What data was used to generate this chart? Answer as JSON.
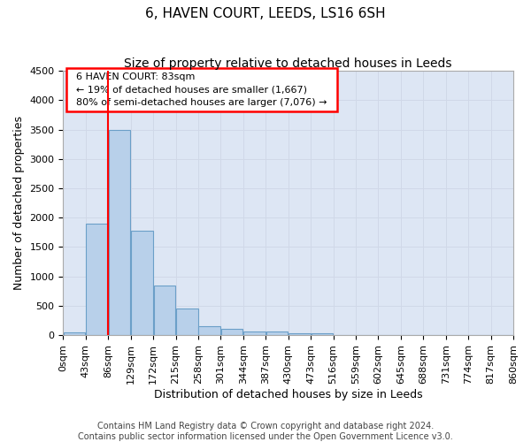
{
  "title": "6, HAVEN COURT, LEEDS, LS16 6SH",
  "subtitle": "Size of property relative to detached houses in Leeds",
  "xlabel": "Distribution of detached houses by size in Leeds",
  "ylabel": "Number of detached properties",
  "footer_line1": "Contains HM Land Registry data © Crown copyright and database right 2024.",
  "footer_line2": "Contains public sector information licensed under the Open Government Licence v3.0.",
  "annotation_title": "6 HAVEN COURT: 83sqm",
  "annotation_line1": "← 19% of detached houses are smaller (1,667)",
  "annotation_line2": "80% of semi-detached houses are larger (7,076) →",
  "bin_labels": [
    "0sqm",
    "43sqm",
    "86sqm",
    "129sqm",
    "172sqm",
    "215sqm",
    "258sqm",
    "301sqm",
    "344sqm",
    "387sqm",
    "430sqm",
    "473sqm",
    "516sqm",
    "559sqm",
    "602sqm",
    "645sqm",
    "688sqm",
    "731sqm",
    "774sqm",
    "817sqm",
    "860sqm"
  ],
  "bar_values": [
    50,
    1900,
    3500,
    1780,
    840,
    460,
    155,
    105,
    60,
    55,
    35,
    35,
    0,
    0,
    0,
    0,
    0,
    0,
    0,
    0
  ],
  "bar_color": "#b8d0ea",
  "bar_edge_color": "#6b9fc8",
  "red_line_x": 1.5,
  "ylim": [
    0,
    4500
  ],
  "yticks": [
    0,
    500,
    1000,
    1500,
    2000,
    2500,
    3000,
    3500,
    4000,
    4500
  ],
  "grid_color": "#d0d8e8",
  "bg_color": "#dde6f4",
  "title_fontsize": 11,
  "subtitle_fontsize": 10,
  "axis_label_fontsize": 9,
  "tick_fontsize": 8,
  "footer_fontsize": 7,
  "annotation_fontsize": 8
}
